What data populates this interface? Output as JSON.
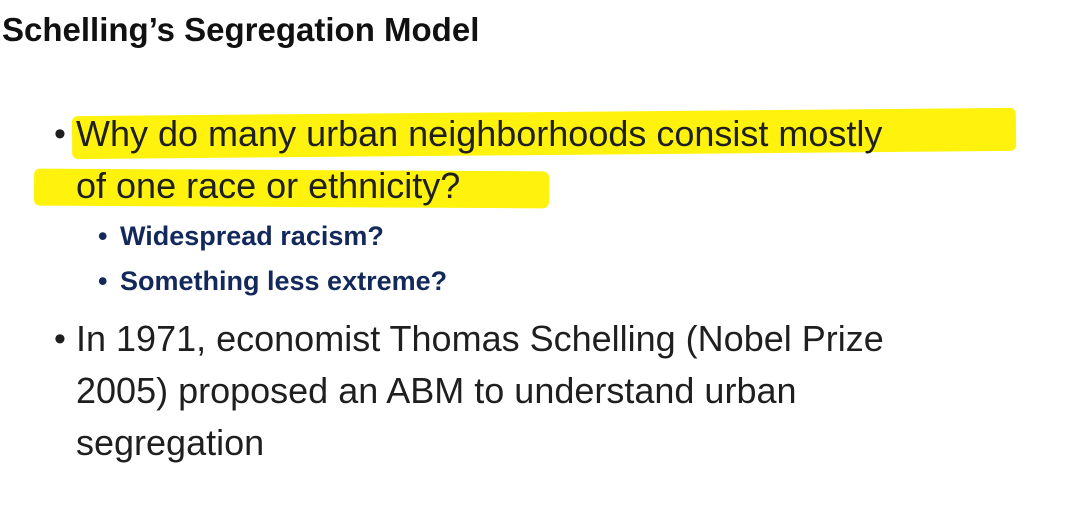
{
  "slide": {
    "title": "Schelling’s Segregation Model",
    "highlight_color": "#fff200",
    "bullets": [
      {
        "lines": [
          "Why do many urban neighborhoods consist mostly",
          "of one race or ethnicity?"
        ],
        "sub_bullets": [
          "Widespread racism?",
          "Something less extreme?"
        ]
      },
      {
        "lines": [
          "In 1971, economist Thomas Schelling (Nobel Prize",
          "2005) proposed an ABM to understand urban",
          "segregation"
        ]
      }
    ],
    "bullet_glyph": "•",
    "sub_bullet_glyph": "•"
  }
}
